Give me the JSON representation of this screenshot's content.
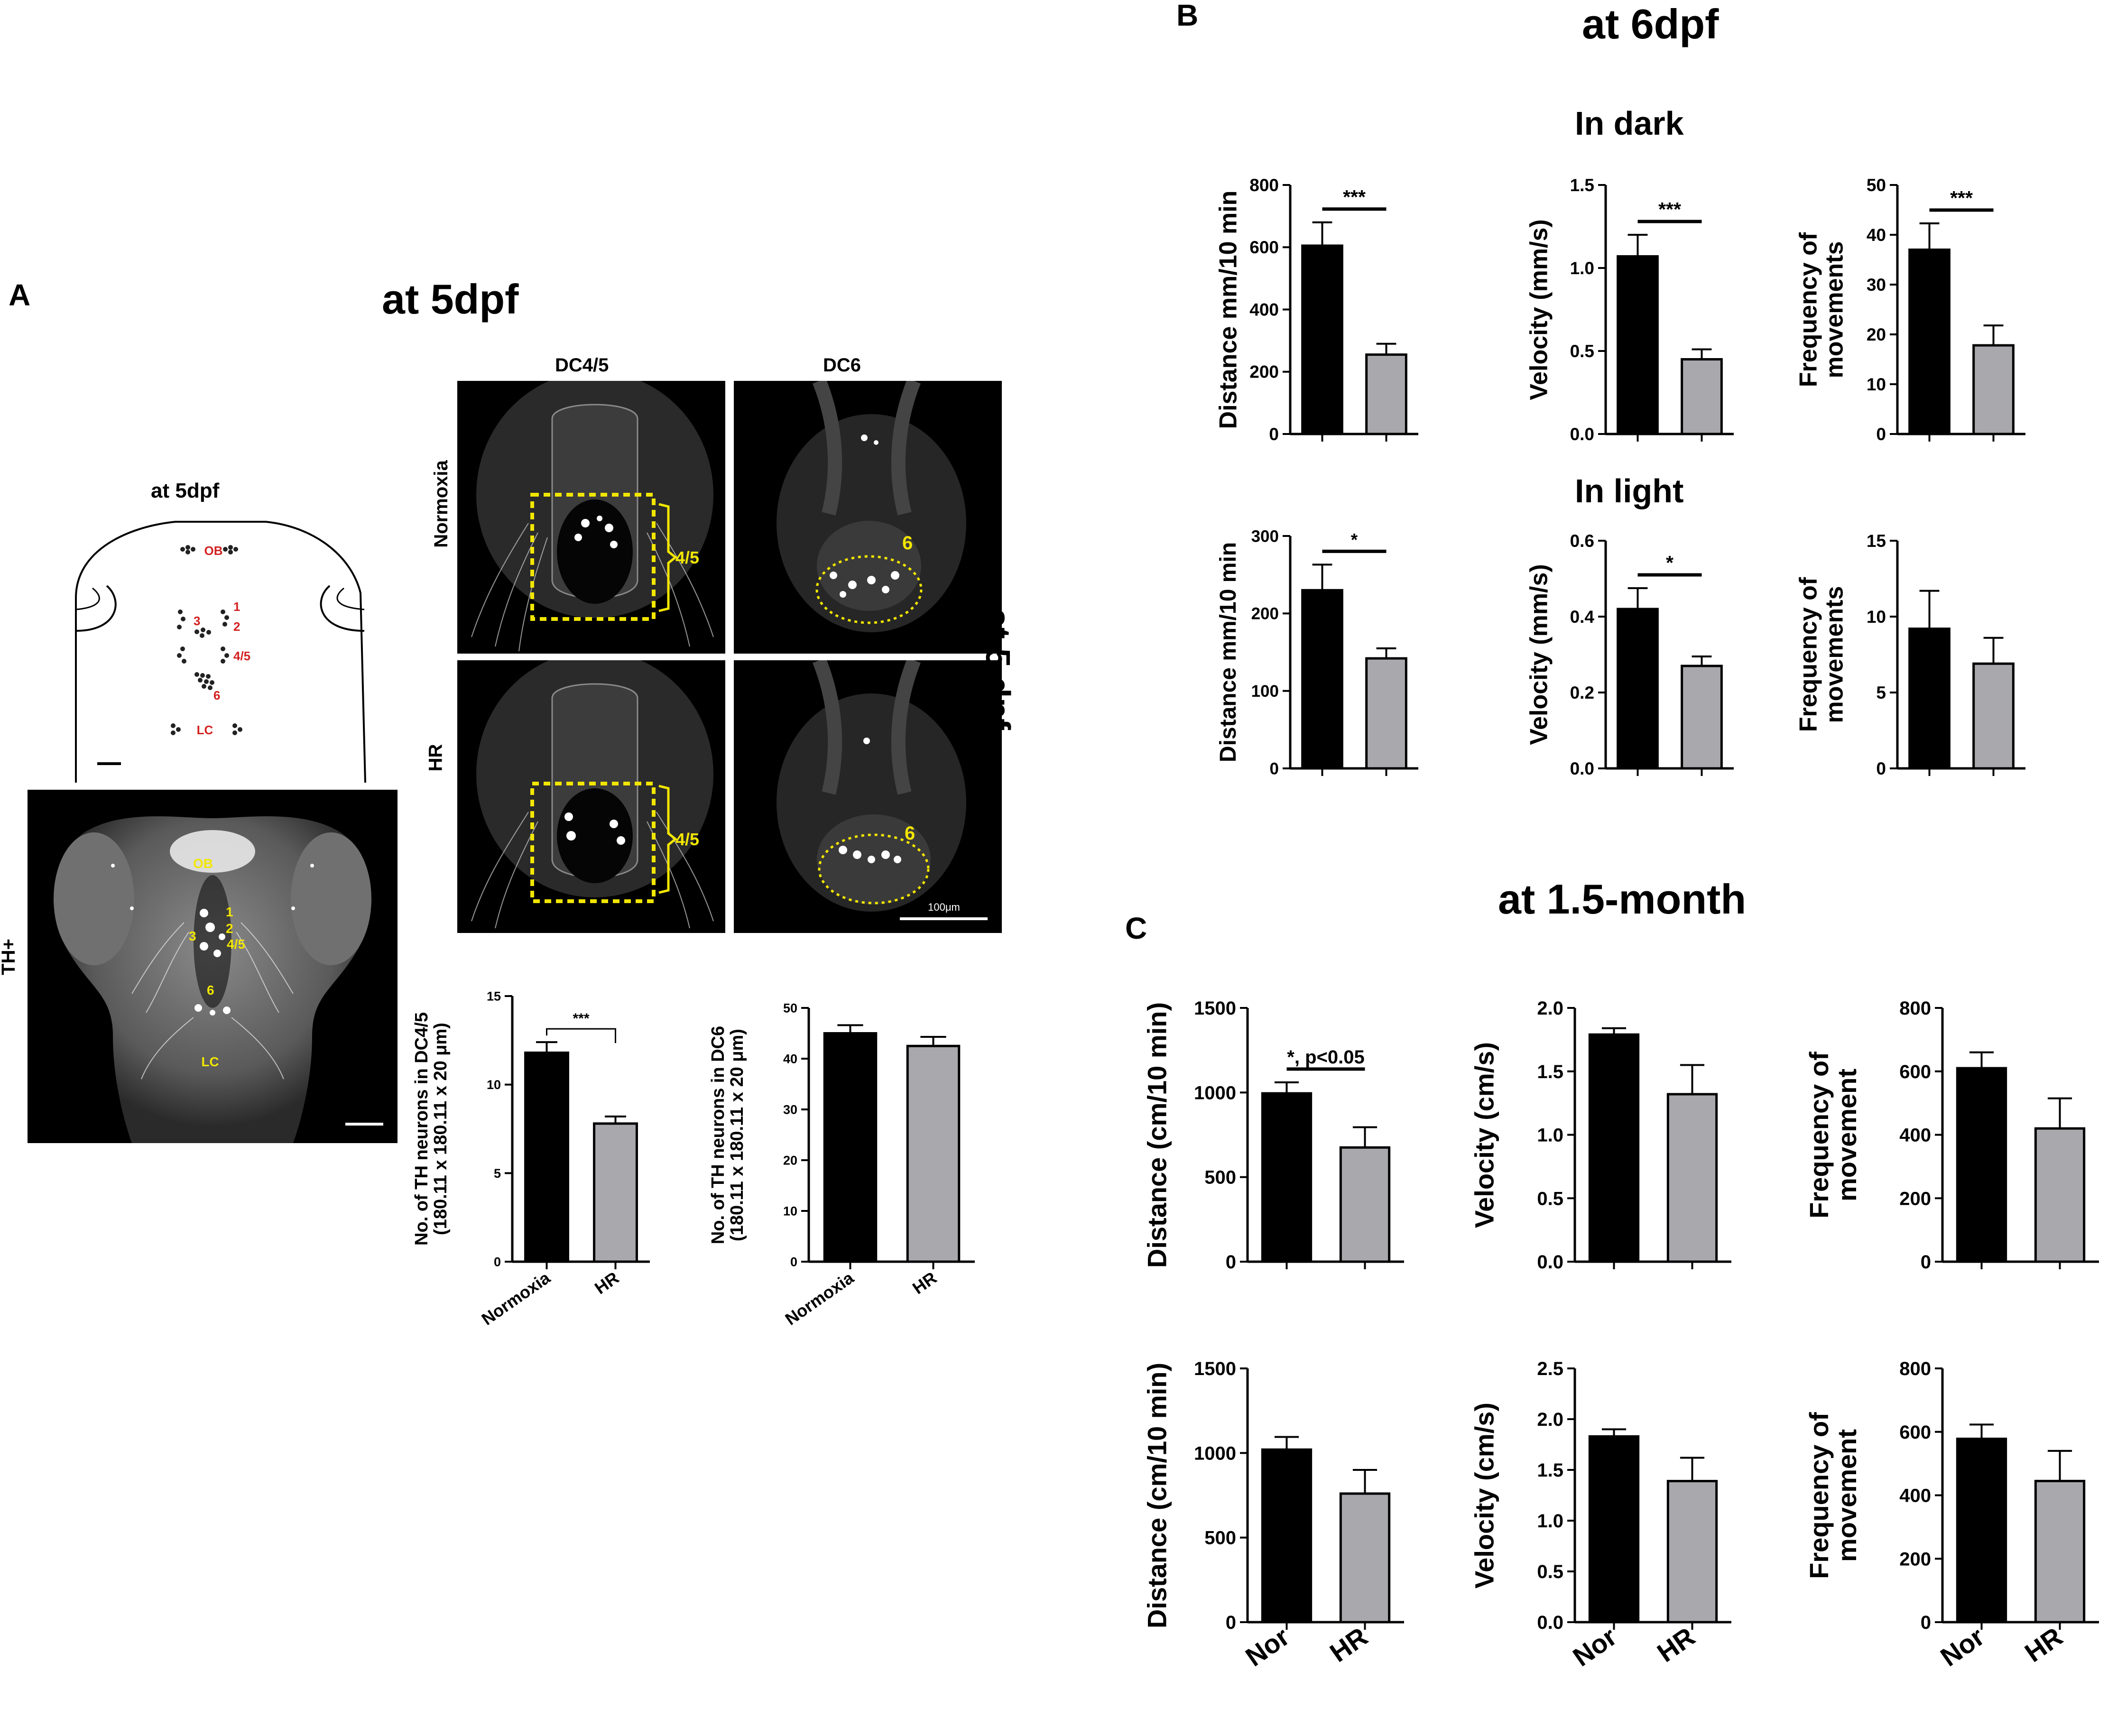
{
  "panel_A": {
    "letter": "A",
    "title": "at 5dpf",
    "schematic": {
      "title": "at 5dpf",
      "labels": {
        "ob": "OB",
        "n1": "1",
        "n2": "2",
        "n3": "3",
        "n45": "4/5",
        "n6": "6",
        "lc": "LC"
      }
    },
    "th_image": {
      "side_label": "TH+",
      "labels": {
        "ob": "OB",
        "n1": "1",
        "n2": "2",
        "n3": "3",
        "n45": "4/5",
        "n6": "6",
        "lc": "LC"
      }
    },
    "grid": {
      "col_dc45": "DC4/5",
      "col_dc6": "DC6",
      "row_normoxia": "Normoxia",
      "row_hr": "HR",
      "side_title": "at 5 dpf",
      "bracket_label": "4/5",
      "circle_label": "6",
      "scale_bar": "100μm"
    }
  },
  "panel_B": {
    "letter": "B",
    "title": "at 6dpf",
    "in_dark": "In dark",
    "in_light": "In light"
  },
  "panel_C": {
    "letter": "C",
    "title": "at 1.5-month"
  },
  "chart_data": [
    {
      "id": "a_dc45",
      "type": "bar",
      "categories": [
        "Normoxia",
        "HR"
      ],
      "values": [
        11.8,
        7.8
      ],
      "errors": [
        0.6,
        0.4
      ],
      "ylabel": "No. of TH neurons in DC4/5\n(180.11 x 180.11 x 20 μm)",
      "ylim": [
        0,
        15
      ],
      "yticks": [
        0,
        5,
        10,
        15
      ],
      "significance": "***",
      "colors": [
        "#000000",
        "#a8a8ad"
      ]
    },
    {
      "id": "a_dc6",
      "type": "bar",
      "categories": [
        "Normoxia",
        "HR"
      ],
      "values": [
        45,
        42.5
      ],
      "errors": [
        1.6,
        1.8
      ],
      "ylabel": "No. of TH neurons in DC6\n(180.11 x 180.11 x 20 μm)",
      "ylim": [
        0,
        50
      ],
      "yticks": [
        0,
        10,
        20,
        30,
        40,
        50
      ],
      "significance": "",
      "colors": [
        "#000000",
        "#a8a8ad"
      ]
    },
    {
      "id": "b_dark_dist",
      "type": "bar",
      "values": [
        605,
        255
      ],
      "errors": [
        75,
        35
      ],
      "ylabel": "Distance mm/10 min",
      "ylim": [
        0,
        800
      ],
      "yticks": [
        0,
        200,
        400,
        600,
        800
      ],
      "significance": "***",
      "colors": [
        "#000000",
        "#a8a8ad"
      ]
    },
    {
      "id": "b_dark_vel",
      "type": "bar",
      "values": [
        1.07,
        0.45
      ],
      "errors": [
        0.13,
        0.06
      ],
      "ylabel": "Velocity (mm/s)",
      "ylim": [
        0,
        1.5
      ],
      "yticks": [
        "0.0",
        "0.5",
        "1.0",
        "1.5"
      ],
      "significance": "***",
      "colors": [
        "#000000",
        "#a8a8ad"
      ]
    },
    {
      "id": "b_dark_freq",
      "type": "bar",
      "values": [
        37,
        17.8
      ],
      "errors": [
        5.3,
        4
      ],
      "ylabel": "Frequency of\nmovements",
      "ylim": [
        0,
        50
      ],
      "yticks": [
        0,
        10,
        20,
        30,
        40,
        50
      ],
      "significance": "***",
      "colors": [
        "#000000",
        "#a8a8ad"
      ]
    },
    {
      "id": "b_light_dist",
      "type": "bar",
      "values": [
        230,
        142
      ],
      "errors": [
        33,
        13
      ],
      "ylabel": "Distance mm/10 min",
      "ylim": [
        0,
        300
      ],
      "yticks": [
        0,
        100,
        200,
        300
      ],
      "significance": "*",
      "colors": [
        "#000000",
        "#a8a8ad"
      ]
    },
    {
      "id": "b_light_vel",
      "type": "bar",
      "values": [
        0.42,
        0.27
      ],
      "errors": [
        0.055,
        0.025
      ],
      "ylabel": "Velocity (mm/s)",
      "ylim": [
        0,
        0.6
      ],
      "yticks": [
        "0.0",
        "0.2",
        "0.4",
        "0.6"
      ],
      "significance": "*",
      "colors": [
        "#000000",
        "#a8a8ad"
      ]
    },
    {
      "id": "b_light_freq",
      "type": "bar",
      "values": [
        9.2,
        6.9
      ],
      "errors": [
        2.5,
        1.7
      ],
      "ylabel": "Frequency of\nmovements",
      "ylim": [
        0,
        15
      ],
      "yticks": [
        0,
        5,
        10,
        15
      ],
      "significance": "",
      "colors": [
        "#000000",
        "#a8a8ad"
      ]
    },
    {
      "id": "c_dark_dist",
      "type": "bar",
      "values": [
        995,
        675
      ],
      "errors": [
        65,
        120
      ],
      "ylabel": "Distance (cm/10 min)",
      "ylim": [
        0,
        1500
      ],
      "yticks": [
        0,
        500,
        1000,
        1500
      ],
      "significance": "*, p<0.05",
      "colors": [
        "#000000",
        "#a8a8ad"
      ]
    },
    {
      "id": "c_dark_vel",
      "type": "bar",
      "values": [
        1.79,
        1.32
      ],
      "errors": [
        0.05,
        0.23
      ],
      "ylabel": "Velocity (cm/s)",
      "ylim": [
        0,
        2.0
      ],
      "yticks": [
        "0.0",
        "0.5",
        "1.0",
        "1.5",
        "2.0"
      ],
      "significance": "",
      "colors": [
        "#000000",
        "#a8a8ad"
      ]
    },
    {
      "id": "c_dark_freq",
      "type": "bar",
      "values": [
        610,
        420
      ],
      "errors": [
        50,
        95
      ],
      "ylabel": "Frequency of\nmovement",
      "ylim": [
        0,
        800
      ],
      "yticks": [
        0,
        200,
        400,
        600,
        800
      ],
      "significance": "",
      "colors": [
        "#000000",
        "#a8a8ad"
      ]
    },
    {
      "id": "c_light_dist",
      "type": "bar",
      "categories": [
        "Nor",
        "HR"
      ],
      "values": [
        1020,
        760
      ],
      "errors": [
        75,
        140
      ],
      "ylabel": "Distance (cm/10 min)",
      "ylim": [
        0,
        1500
      ],
      "yticks": [
        0,
        500,
        1000,
        1500
      ],
      "significance": "",
      "colors": [
        "#000000",
        "#a8a8ad"
      ]
    },
    {
      "id": "c_light_vel",
      "type": "bar",
      "categories": [
        "Nor",
        "HR"
      ],
      "values": [
        1.83,
        1.39
      ],
      "errors": [
        0.07,
        0.23
      ],
      "ylabel": "Velocity (cm/s)",
      "ylim": [
        0,
        2.5
      ],
      "yticks": [
        "0.0",
        "0.5",
        "1.0",
        "1.5",
        "2.0",
        "2.5"
      ],
      "significance": "",
      "colors": [
        "#000000",
        "#a8a8ad"
      ]
    },
    {
      "id": "c_light_freq",
      "type": "bar",
      "categories": [
        "Nor",
        "HR"
      ],
      "values": [
        578,
        445
      ],
      "errors": [
        45,
        95
      ],
      "ylabel": "Frequency of\nmovement",
      "ylim": [
        0,
        800
      ],
      "yticks": [
        0,
        200,
        400,
        600,
        800
      ],
      "significance": "",
      "colors": [
        "#000000",
        "#a8a8ad"
      ]
    }
  ]
}
